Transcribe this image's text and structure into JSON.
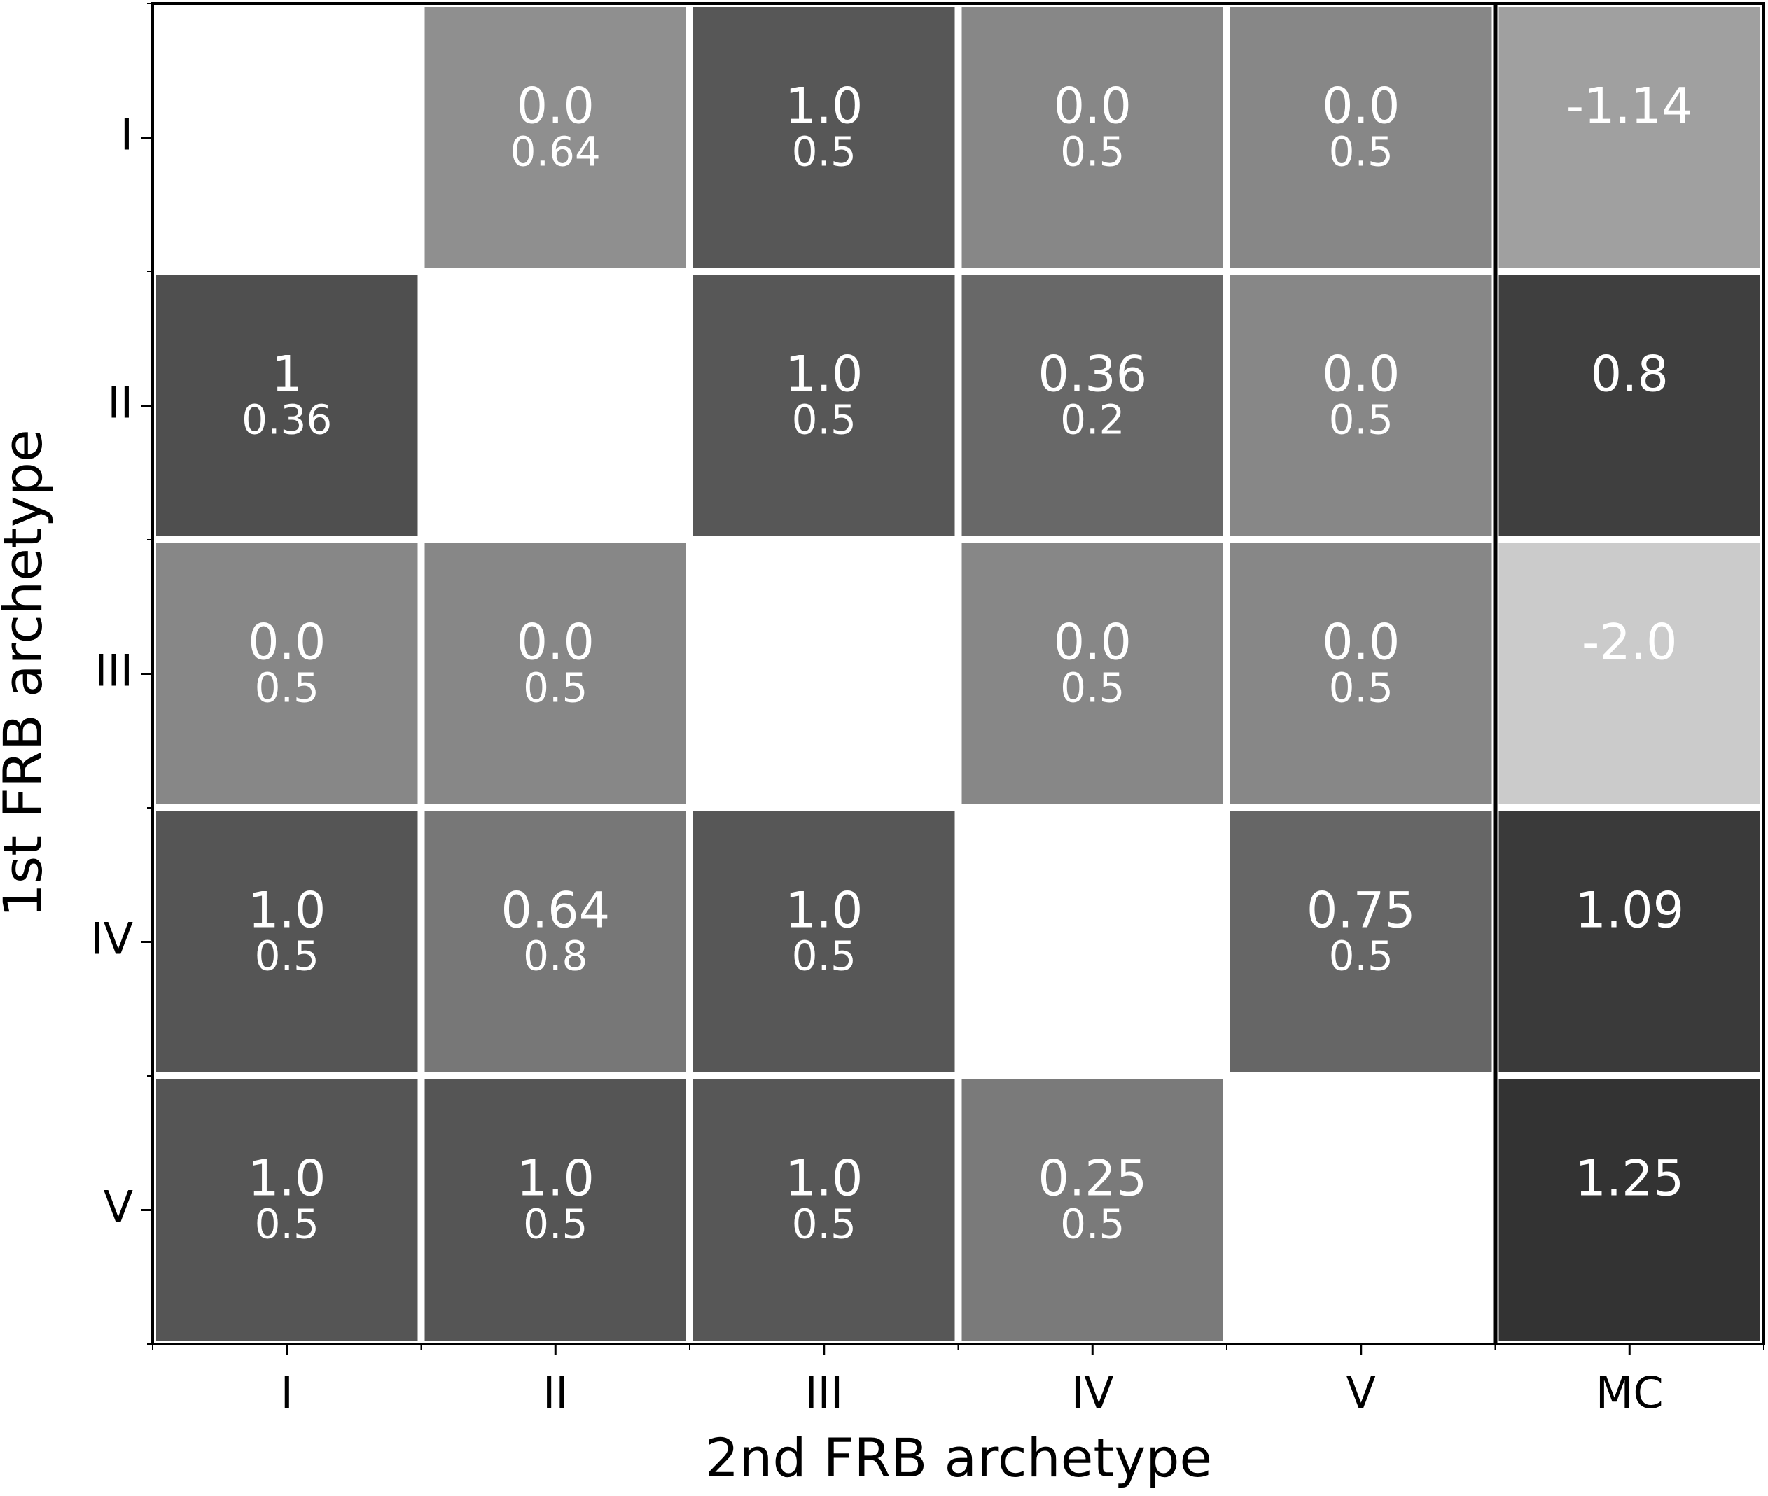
{
  "chart_data": {
    "type": "heatmap",
    "xlabel": "2nd FRB archetype",
    "ylabel": "1st FRB archetype",
    "rows": [
      "I",
      "II",
      "III",
      "IV",
      "V"
    ],
    "columns": [
      "I",
      "II",
      "III",
      "IV",
      "V",
      "MC"
    ],
    "values": [
      [
        null,
        0.0,
        1.0,
        0.0,
        0.0,
        -1.14
      ],
      [
        1.0,
        null,
        1.0,
        0.36,
        0.0,
        0.8
      ],
      [
        0.0,
        0.0,
        null,
        0.0,
        0.0,
        -2.0
      ],
      [
        1.0,
        0.64,
        1.0,
        null,
        0.75,
        1.09
      ],
      [
        1.0,
        1.0,
        1.0,
        0.25,
        null,
        1.25
      ]
    ],
    "value_labels": [
      [
        null,
        "0.0",
        "1.0",
        "0.0",
        "0.0",
        "-1.14"
      ],
      [
        null,
        null,
        "1.0",
        null,
        "0.0",
        null
      ],
      [
        "0.0",
        "0.0",
        null,
        "0.0",
        "0.0",
        "-2.0"
      ],
      [
        "1.0",
        null,
        "1.0",
        null,
        null,
        null
      ],
      [
        "1.0",
        "1.0",
        "1.0",
        null,
        null,
        null
      ]
    ],
    "secondary_values": [
      [
        null,
        0.64,
        0.5,
        0.5,
        0.5,
        null
      ],
      [
        0.36,
        null,
        0.5,
        0.2,
        0.5,
        null
      ],
      [
        0.5,
        0.5,
        null,
        0.5,
        0.5,
        null
      ],
      [
        0.5,
        0.8,
        0.5,
        null,
        0.5,
        null
      ],
      [
        0.5,
        0.5,
        0.5,
        0.5,
        null,
        null
      ]
    ],
    "secondary_value_labels": [
      [
        null,
        null,
        null,
        null,
        null,
        null
      ],
      [
        null,
        null,
        null,
        "0.2",
        null,
        null
      ],
      [
        null,
        null,
        null,
        null,
        null,
        null
      ],
      [
        null,
        "0.8",
        null,
        null,
        null,
        null
      ],
      [
        null,
        null,
        null,
        null,
        null,
        null
      ]
    ],
    "row_labels": [
      null,
      null,
      null,
      null,
      null
    ],
    "cell_colors": [
      [
        null,
        "#8f8f8f",
        "#575757",
        "#878787",
        "#878787",
        "#a0a0a0"
      ],
      [
        "#4f4f4f",
        null,
        "#575757",
        "#686868",
        "#878787",
        "#3f3f3f"
      ],
      [
        "#878787",
        "#878787",
        null,
        "#878787",
        "#878787",
        "#cbcbcb"
      ],
      [
        "#555555",
        "#777777",
        "#575757",
        null,
        "#666666",
        "#3a3a3a"
      ],
      [
        "#555555",
        "#555555",
        "#575757",
        "#7a7a7a",
        null,
        "#333333"
      ]
    ],
    "label_color": "#ffffff"
  }
}
